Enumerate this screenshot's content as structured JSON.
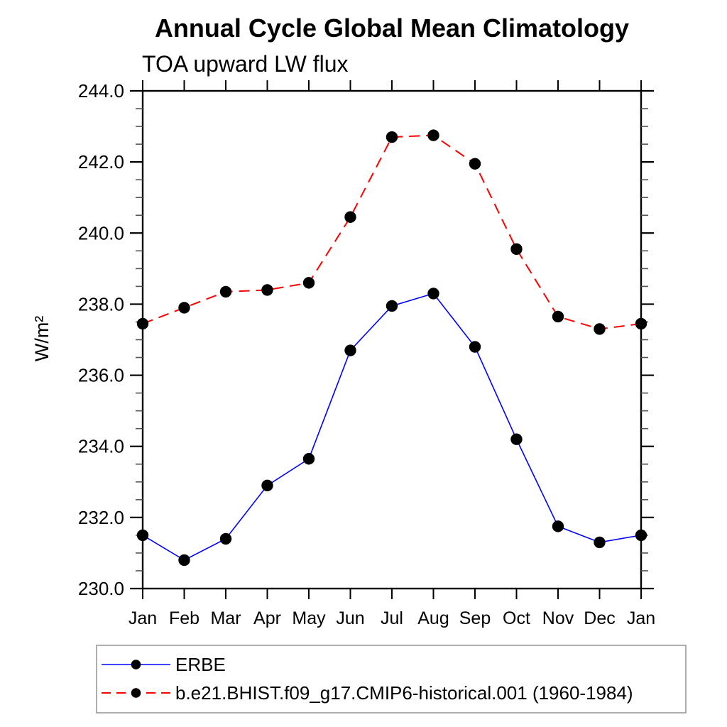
{
  "page": {
    "background": "#ffffff"
  },
  "chart_data": {
    "type": "line",
    "title": "Annual Cycle Global Mean Climatology",
    "subtitle": "TOA upward LW flux",
    "ylabel": "W/m²",
    "xlabel": "",
    "ylim": [
      230.0,
      244.0
    ],
    "ytick_major_step": 2.0,
    "ytick_minor_step": 0.5,
    "ytick_labels": [
      "230.0",
      "232.0",
      "234.0",
      "236.0",
      "238.0",
      "240.0",
      "242.0",
      "244.0"
    ],
    "categories": [
      "Jan",
      "Feb",
      "Mar",
      "Apr",
      "May",
      "Jun",
      "Jul",
      "Aug",
      "Sep",
      "Oct",
      "Nov",
      "Dec",
      "Jan"
    ],
    "grid": false,
    "legend_position": "bottom-left",
    "marker": "filled-circle",
    "marker_color": "#000000",
    "series": [
      {
        "name": "ERBE",
        "color": "#0000ff",
        "line_style": "solid",
        "values": [
          231.5,
          230.8,
          231.4,
          232.9,
          233.65,
          236.7,
          237.95,
          238.3,
          236.8,
          234.2,
          231.75,
          231.3,
          231.5
        ]
      },
      {
        "name": "b.e21.BHIST.f09_g17.CMIP6-historical.001 (1960-1984)",
        "color": "#ff0000",
        "line_style": "dashed",
        "values": [
          237.45,
          237.9,
          238.35,
          238.4,
          238.6,
          240.45,
          242.7,
          242.75,
          241.95,
          239.55,
          237.65,
          237.3,
          237.45
        ]
      }
    ]
  }
}
